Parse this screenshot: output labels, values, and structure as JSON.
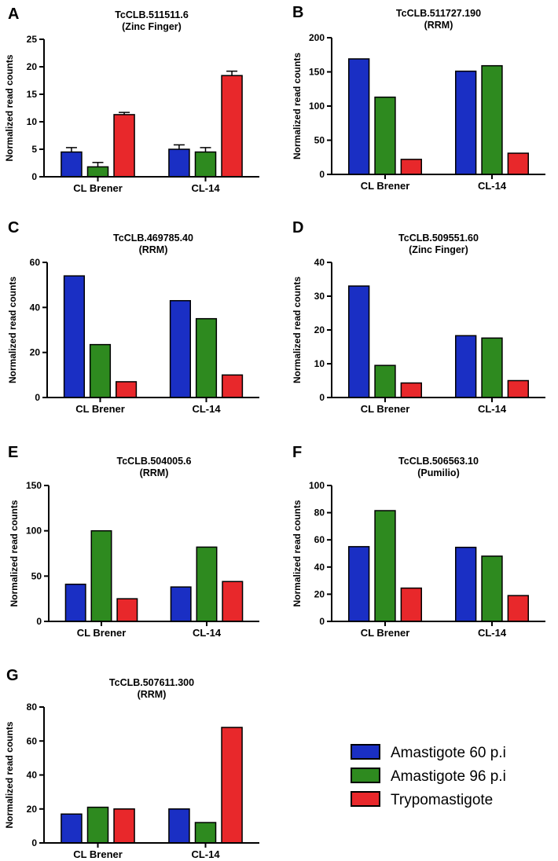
{
  "colors": {
    "amastigote_60": "#1a2fc4",
    "amastigote_96": "#2e8a1f",
    "trypomastigote": "#e8282b"
  },
  "legend": [
    {
      "label": "Amastigote 60 p.i",
      "color_key": "amastigote_60"
    },
    {
      "label": "Amastigote 96 p.i",
      "color_key": "amastigote_96"
    },
    {
      "label": "Trypomastigote",
      "color_key": "trypomastigote"
    }
  ],
  "chart_data": [
    {
      "panel": "A",
      "type": "bar",
      "title": "TcCLB.511511.6",
      "subtitle": "(Zinc Finger)",
      "ylabel": "Normalized read counts",
      "categories": [
        "CL Brener",
        "CL-14"
      ],
      "ylim": [
        0,
        25
      ],
      "yticks": [
        0,
        5,
        10,
        15,
        20,
        25
      ],
      "series": [
        {
          "name": "Amastigote 60 p.i",
          "values": [
            4.5,
            5.0
          ],
          "errors": [
            0.8,
            0.8
          ]
        },
        {
          "name": "Amastigote 96 p.i",
          "values": [
            1.8,
            4.5
          ],
          "errors": [
            0.8,
            0.8
          ]
        },
        {
          "name": "Trypomastigote",
          "values": [
            11.3,
            18.4
          ],
          "errors": [
            0.4,
            0.8
          ]
        }
      ]
    },
    {
      "panel": "B",
      "type": "bar",
      "title": "TcCLB.511727.190",
      "subtitle": "(RRM)",
      "ylabel": "Normalized read counts",
      "categories": [
        "CL Brener",
        "CL-14"
      ],
      "ylim": [
        0,
        200
      ],
      "yticks": [
        0,
        50,
        100,
        150,
        200
      ],
      "series": [
        {
          "name": "Amastigote 60 p.i",
          "values": [
            169,
            151
          ]
        },
        {
          "name": "Amastigote 96 p.i",
          "values": [
            113,
            159
          ]
        },
        {
          "name": "Trypomastigote",
          "values": [
            22,
            31
          ]
        }
      ]
    },
    {
      "panel": "C",
      "type": "bar",
      "title": "TcCLB.469785.40",
      "subtitle": "(RRM)",
      "ylabel": "Normalized read counts",
      "categories": [
        "CL Brener",
        "CL-14"
      ],
      "ylim": [
        0,
        60
      ],
      "yticks": [
        0,
        20,
        40,
        60
      ],
      "series": [
        {
          "name": "Amastigote 60 p.i",
          "values": [
            54,
            43
          ]
        },
        {
          "name": "Amastigote 96 p.i",
          "values": [
            23.5,
            35
          ]
        },
        {
          "name": "Trypomastigote",
          "values": [
            7,
            10
          ]
        }
      ]
    },
    {
      "panel": "D",
      "type": "bar",
      "title": "TcCLB.509551.60",
      "subtitle": "(Zinc Finger)",
      "ylabel": "Normalized read counts",
      "categories": [
        "CL Brener",
        "CL-14"
      ],
      "ylim": [
        0,
        40
      ],
      "yticks": [
        0,
        10,
        20,
        30,
        40
      ],
      "series": [
        {
          "name": "Amastigote 60 p.i",
          "values": [
            33,
            18.3
          ]
        },
        {
          "name": "Amastigote 96 p.i",
          "values": [
            9.5,
            17.6
          ]
        },
        {
          "name": "Trypomastigote",
          "values": [
            4.3,
            5.0
          ]
        }
      ]
    },
    {
      "panel": "E",
      "type": "bar",
      "title": "TcCLB.504005.6",
      "subtitle": "(RRM)",
      "ylabel": "Normalized read counts",
      "categories": [
        "CL Brener",
        "CL-14"
      ],
      "ylim": [
        0,
        150
      ],
      "yticks": [
        0,
        50,
        100,
        150
      ],
      "series": [
        {
          "name": "Amastigote 60 p.i",
          "values": [
            41,
            38
          ]
        },
        {
          "name": "Amastigote 96 p.i",
          "values": [
            100,
            82
          ]
        },
        {
          "name": "Trypomastigote",
          "values": [
            25,
            44
          ]
        }
      ]
    },
    {
      "panel": "F",
      "type": "bar",
      "title": "TcCLB.506563.10",
      "subtitle": "(Pumilio)",
      "ylabel": "Normalized read counts",
      "categories": [
        "CL Brener",
        "CL-14"
      ],
      "ylim": [
        0,
        100
      ],
      "yticks": [
        0,
        20,
        40,
        60,
        80,
        100
      ],
      "series": [
        {
          "name": "Amastigote 60 p.i",
          "values": [
            55,
            54.5
          ]
        },
        {
          "name": "Amastigote 96 p.i",
          "values": [
            81.5,
            48
          ]
        },
        {
          "name": "Trypomastigote",
          "values": [
            24.5,
            19
          ]
        }
      ]
    },
    {
      "panel": "G",
      "type": "bar",
      "title": "TcCLB.507611.300",
      "subtitle": "(RRM)",
      "ylabel": "Normalized read counts",
      "categories": [
        "CL Brener",
        "CL-14"
      ],
      "ylim": [
        0,
        80
      ],
      "yticks": [
        0,
        20,
        40,
        60,
        80
      ],
      "series": [
        {
          "name": "Amastigote 60 p.i",
          "values": [
            17,
            20
          ]
        },
        {
          "name": "Amastigote 96 p.i",
          "values": [
            21,
            12
          ]
        },
        {
          "name": "Trypomastigote",
          "values": [
            20,
            68
          ]
        }
      ]
    }
  ]
}
